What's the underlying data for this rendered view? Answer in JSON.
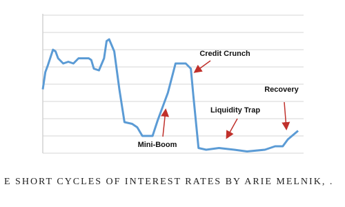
{
  "chart_data": {
    "type": "line",
    "x": [
      0,
      1,
      2,
      4,
      5,
      6,
      8,
      10,
      12,
      14,
      16,
      18,
      19,
      20,
      22,
      24,
      25,
      26,
      28,
      30,
      32,
      35,
      37,
      39,
      43,
      45,
      49,
      52,
      56,
      58,
      59,
      61,
      64,
      69,
      75,
      80,
      87,
      91,
      94,
      96,
      100
    ],
    "series": [
      {
        "color": "#5b9bd5",
        "values": [
          3.7,
          4.7,
          5.1,
          6.0,
          5.9,
          5.5,
          5.2,
          5.3,
          5.2,
          5.5,
          5.5,
          5.5,
          5.4,
          4.9,
          4.8,
          5.5,
          6.5,
          6.6,
          5.9,
          3.7,
          1.8,
          1.7,
          1.5,
          1.0,
          1.0,
          1.9,
          3.5,
          5.2,
          5.2,
          4.9,
          3.3,
          0.3,
          0.2,
          0.3,
          0.2,
          0.1,
          0.2,
          0.4,
          0.4,
          0.8,
          1.3
        ]
      }
    ],
    "xlim": [
      0,
      100
    ],
    "ylim": [
      0,
      8
    ],
    "yticks": [
      0,
      1,
      2,
      3,
      4,
      5,
      6,
      7,
      8
    ],
    "grid": true,
    "annotations": [
      "Credit Crunch",
      "Recovery",
      "Liquidity Trap",
      "Mini-Boom"
    ]
  },
  "caption": "E SHORT CYCLES OF INTEREST RATES BY ARIE MELNIK, ."
}
